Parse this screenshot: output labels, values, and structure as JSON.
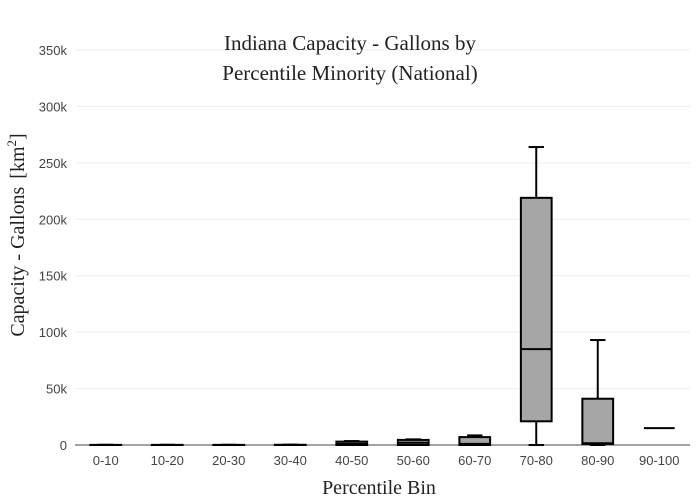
{
  "chart_data": {
    "type": "box",
    "title_lines": [
      "Indiana Capacity - Gallons by",
      "Percentile Minority (National)"
    ],
    "xlabel": "Percentile Bin",
    "ylabel": "Capacity - Gallons",
    "ylabel_unit_base": "[km",
    "ylabel_unit_exp": "2",
    "ylabel_unit_close": "]",
    "ylim": [
      0,
      350000
    ],
    "yticks": [
      0,
      50000,
      100000,
      150000,
      200000,
      250000,
      300000,
      350000
    ],
    "ytick_labels": [
      "0",
      "50k",
      "100k",
      "150k",
      "200k",
      "250k",
      "300k",
      "350k"
    ],
    "grid": true,
    "categories": [
      "0-10",
      "10-20",
      "20-30",
      "30-40",
      "40-50",
      "50-60",
      "60-70",
      "70-80",
      "80-90",
      "90-100"
    ],
    "boxes": [
      {
        "min": 0,
        "q1": 0,
        "median": 0,
        "q3": 100,
        "max": 200
      },
      {
        "min": 0,
        "q1": 0,
        "median": 0,
        "q3": 100,
        "max": 200
      },
      {
        "min": 0,
        "q1": 0,
        "median": 0,
        "q3": 100,
        "max": 200
      },
      {
        "min": 0,
        "q1": 0,
        "median": 0,
        "q3": 200,
        "max": 300
      },
      {
        "min": 0,
        "q1": 0,
        "median": 1000,
        "q3": 3000,
        "max": 3500
      },
      {
        "min": 0,
        "q1": 0,
        "median": 2000,
        "q3": 4500,
        "max": 5000
      },
      {
        "min": 0,
        "q1": 0,
        "median": 1000,
        "q3": 7000,
        "max": 8500
      },
      {
        "min": 0,
        "q1": 21000,
        "median": 85000,
        "q3": 219000,
        "max": 264000
      },
      {
        "min": 0,
        "q1": 1000,
        "median": 1500,
        "q3": 41000,
        "max": 93000
      },
      {
        "min": 15000,
        "q1": 15000,
        "median": 15000,
        "q3": 15000,
        "max": 15000
      }
    ],
    "box_fill": "#a6a6a6",
    "line_color": "#000000"
  }
}
